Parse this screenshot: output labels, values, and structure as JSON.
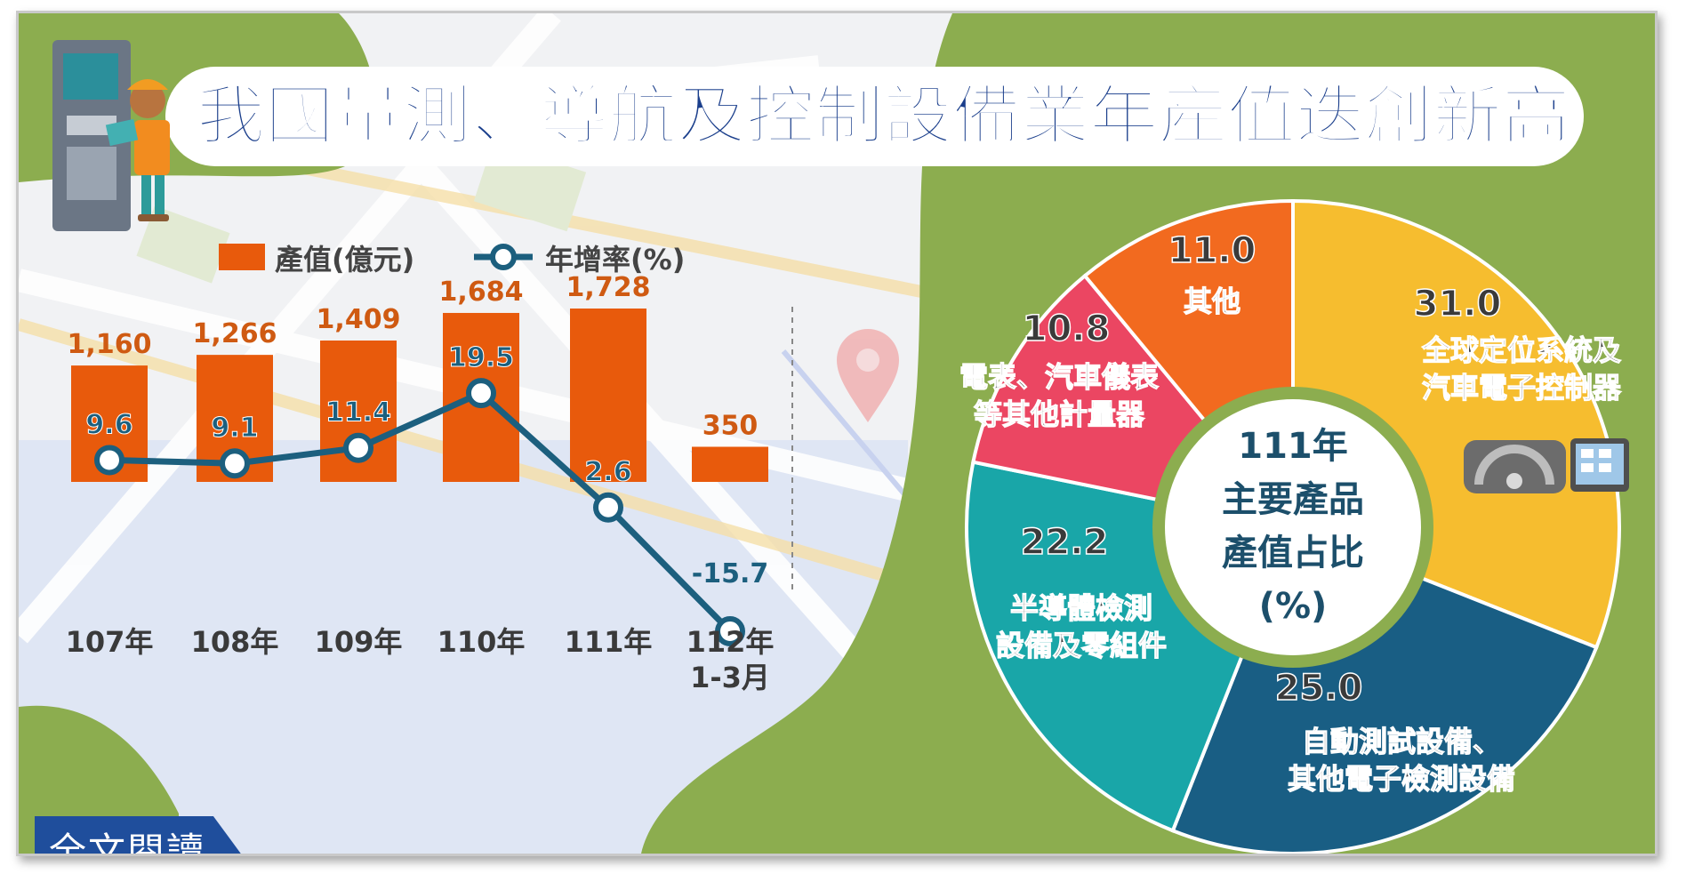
{
  "title": "我國量測、導航及控制設備業年產值迭創新高",
  "read_more_label": "全文閱讀",
  "colors": {
    "bar": "#e85a0c",
    "line": "#1c5f7e",
    "green": "#8cad4f",
    "title": "#1b3f8c",
    "value_label": "#cf5a12"
  },
  "chart_data": [
    {
      "type": "bar",
      "legend": [
        "產值(億元)",
        "年增率(%)"
      ],
      "legend_position": "top-left",
      "categories": [
        "107年",
        "108年",
        "109年",
        "110年",
        "111年",
        "112年\n1-3月"
      ],
      "series": [
        {
          "name": "產值(億元)",
          "type": "bar",
          "values": [
            1160,
            1266,
            1409,
            1684,
            1728,
            350
          ],
          "labels": [
            "1,160",
            "1,266",
            "1,409",
            "1,684",
            "1,728",
            "350"
          ]
        },
        {
          "name": "年增率(%)",
          "type": "line",
          "values": [
            9.6,
            9.1,
            11.4,
            19.5,
            2.6,
            -15.7
          ],
          "labels": [
            "9.6",
            "9.1",
            "11.4",
            "19.5",
            "2.6",
            "-15.7"
          ]
        }
      ],
      "grid": false
    },
    {
      "type": "pie",
      "center_label": [
        "111年",
        "主要產品",
        "產值占比",
        "(%)"
      ],
      "slices": [
        {
          "value": 31.0,
          "label": "31.0",
          "name_lines": [
            "全球定位系統及",
            "汽車電子控制器"
          ],
          "color": "#f6bd2f"
        },
        {
          "value": 25.0,
          "label": "25.0",
          "name_lines": [
            "自動測試設備、",
            "其他電子檢測設備"
          ],
          "color": "#195e84"
        },
        {
          "value": 22.2,
          "label": "22.2",
          "name_lines": [
            "半導體檢測",
            "設備及零組件"
          ],
          "color": "#19a6a8"
        },
        {
          "value": 10.8,
          "label": "10.8",
          "name_lines": [
            "電表、汽車儀表",
            "等其他計量器"
          ],
          "color": "#eb4662"
        },
        {
          "value": 11.0,
          "label": "11.0",
          "name_lines": [
            "其他"
          ],
          "color": "#f26a1f"
        }
      ]
    }
  ]
}
